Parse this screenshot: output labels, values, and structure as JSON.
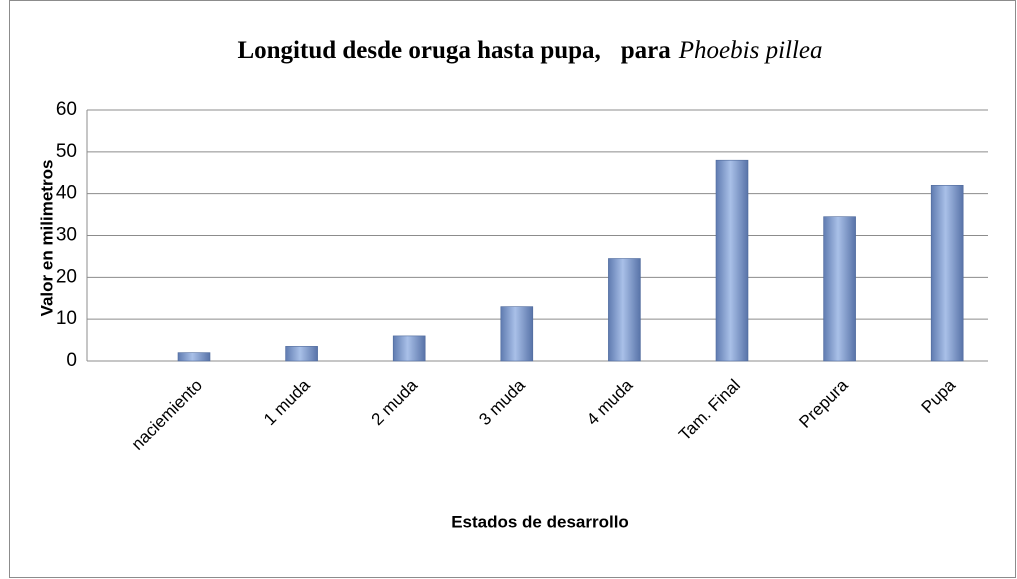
{
  "chart_data": {
    "type": "bar",
    "title": [
      "Longitud desde oruga hasta pupa,",
      "para",
      "Phoebis pillea"
    ],
    "x_label": "Estados de desarrollo",
    "y_label": "Valor en milimetros",
    "categories": [
      "naciemiento",
      "1 muda",
      "2 muda",
      "3 muda",
      "4 muda",
      "Tam. Final",
      "Prepura",
      "Pupa"
    ],
    "values": [
      2,
      3.5,
      6,
      13,
      24.5,
      48,
      34.5,
      42
    ],
    "color": "#7f9bcf",
    "ylim": [
      0,
      60
    ],
    "yticks": [
      0,
      10,
      20,
      30,
      40,
      50,
      60
    ],
    "grid": true
  }
}
